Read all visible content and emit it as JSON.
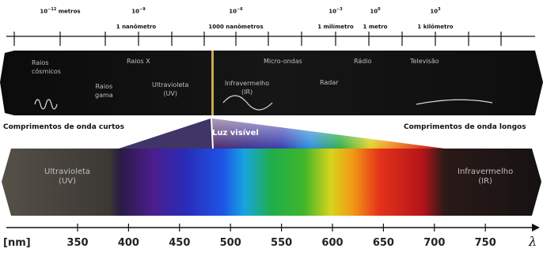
{
  "scale_top": [
    {
      "base": "10",
      "exp": "−12",
      "unit": " metros",
      "sub": ""
    },
    {
      "base": "10",
      "exp": "−9",
      "unit": "",
      "sub": "1 nanômetro"
    },
    {
      "base": "10",
      "exp": "−6",
      "unit": "",
      "sub": "1000 nanômetros"
    },
    {
      "base": "10",
      "exp": "−3",
      "unit": "",
      "sub": "1 milímetro"
    },
    {
      "base": "10",
      "exp": "0",
      "unit": "",
      "sub": "1 metro"
    },
    {
      "base": "10",
      "exp": "3",
      "unit": "",
      "sub": "1 kilômetro"
    }
  ],
  "bands": {
    "raios_cosmicos": "Raios\ncósmicos",
    "raios_x": "Raios X",
    "raios_gama": "Raios\ngama",
    "ultravioleta": "Ultravioleta\n(UV)",
    "infravermelho": "Infravermelho\n(IR)",
    "micro_ondas": "Micro-ondas",
    "radar": "Radar",
    "radio": "Rádio",
    "televisao": "Televisão"
  },
  "captions": {
    "short": "Comprimentos de onda curtos",
    "long": "Comprimentos de onda longos",
    "visible": "Luz visível"
  },
  "lower": {
    "uv": "Ultravioleta\n(UV)",
    "ir": "Infravermelho\n(IR)"
  },
  "nm_axis": {
    "unit": "[nm]",
    "ticks": [
      "350",
      "400",
      "450",
      "500",
      "550",
      "600",
      "650",
      "700",
      "750"
    ],
    "symbol": "λ"
  },
  "colors": {
    "band_dark": "#141414",
    "visible_marker": "#c7a85a"
  }
}
